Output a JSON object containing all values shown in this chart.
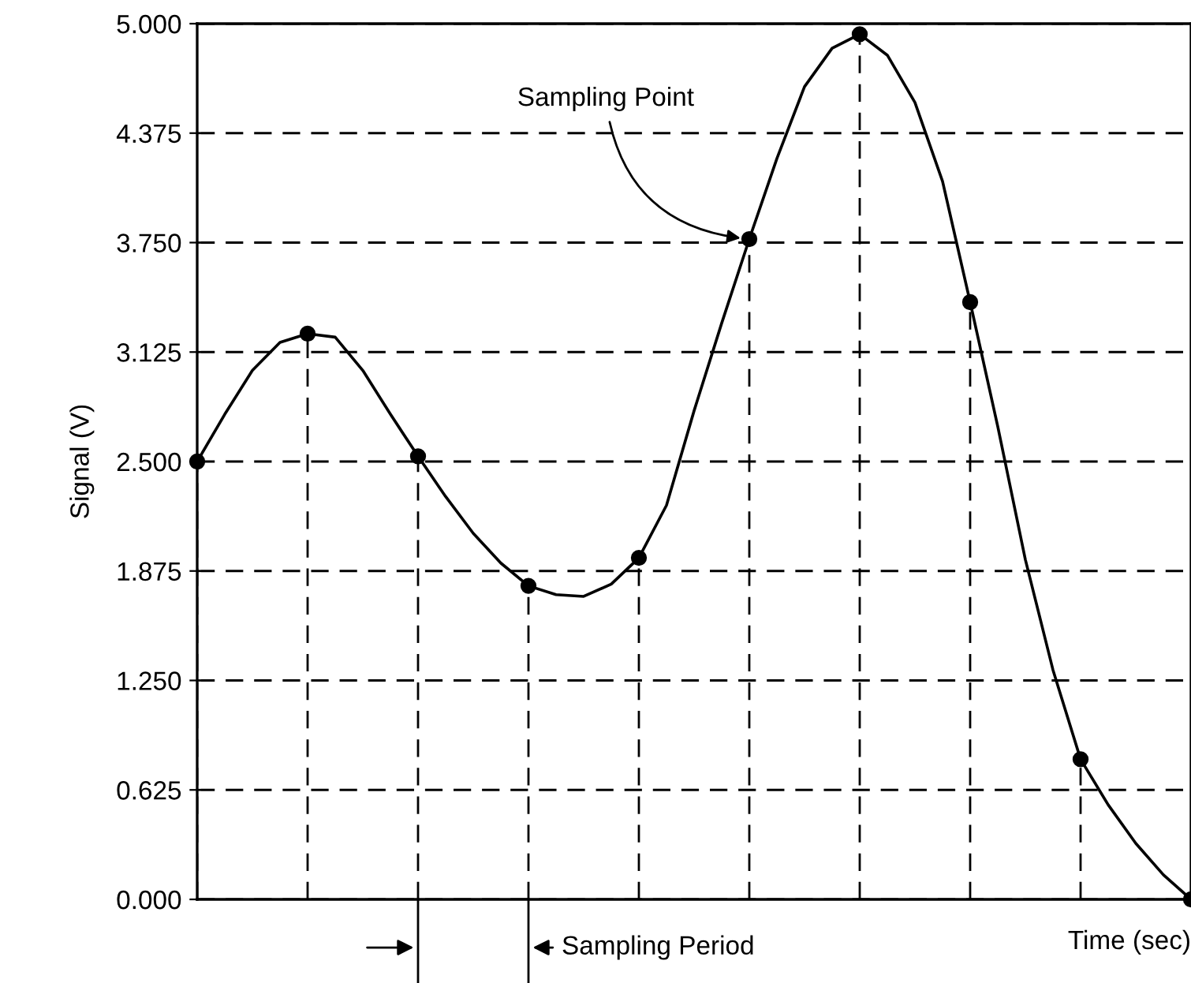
{
  "chart_data": {
    "type": "line",
    "ylabel": "Signal (V)",
    "xlabel": "Time (sec)",
    "categories": [
      null,
      null,
      null,
      null,
      null,
      null,
      null,
      null,
      null,
      null,
      null,
      null,
      null,
      null,
      null,
      null,
      null,
      null,
      null,
      null,
      null,
      null,
      null,
      null,
      null,
      null,
      null,
      null,
      null,
      null,
      null,
      null,
      null,
      null,
      null,
      null,
      null
    ],
    "ylim": [
      0,
      5
    ],
    "yticks": [
      {
        "value": 0,
        "label": "0.000"
      },
      {
        "value": 0.625,
        "label": "0.625"
      },
      {
        "value": 1.25,
        "label": "1.250"
      },
      {
        "value": 1.875,
        "label": "1.875"
      },
      {
        "value": 2.5,
        "label": "2.500"
      },
      {
        "value": 3.125,
        "label": "3.125"
      },
      {
        "value": 3.75,
        "label": "3.750"
      },
      {
        "value": 4.375,
        "label": "4.375"
      },
      {
        "value": 5,
        "label": "5.000"
      }
    ],
    "tick_labels": "y",
    "grid": "y",
    "series": [
      {
        "color": "#000000",
        "line_style": "solid",
        "marker": "none",
        "values": [
          2.5,
          2.77,
          3.02,
          3.18,
          3.23,
          3.21,
          3.02,
          2.77,
          2.53,
          2.3,
          2.09,
          1.92,
          1.79,
          1.74,
          1.73,
          1.8,
          1.95,
          2.25,
          2.79,
          3.29,
          3.77,
          4.23,
          4.64,
          4.86,
          4.94,
          4.82,
          4.55,
          4.1,
          3.41,
          2.7,
          1.94,
          1.31,
          0.8,
          0.54,
          0.32,
          0.14,
          0
        ]
      },
      {
        "type": "lollipop",
        "color": "#000000",
        "line_style": "dashed",
        "marker": "circle",
        "values": [
          2.5,
          null,
          null,
          null,
          3.23,
          null,
          null,
          null,
          2.53,
          null,
          null,
          null,
          1.79,
          null,
          null,
          null,
          1.95,
          null,
          null,
          null,
          3.77,
          null,
          null,
          null,
          4.94,
          null,
          null,
          null,
          3.41,
          null,
          null,
          null,
          0.8,
          null,
          null,
          null,
          0
        ]
      }
    ],
    "annotations": [
      "Sampling Point",
      "Sampling Period"
    ]
  }
}
